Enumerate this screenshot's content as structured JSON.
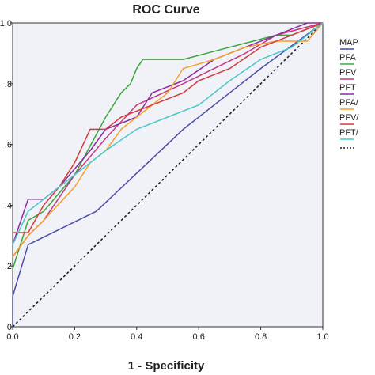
{
  "chart_data": {
    "type": "line",
    "title": "ROC Curve",
    "xlabel": "1 - Specificity",
    "ylabel": "",
    "xlim": [
      0,
      1
    ],
    "ylim": [
      0,
      1
    ],
    "x_ticks": [
      "0.0",
      "0.2",
      "0.4",
      "0.6",
      "0.8",
      "1.0"
    ],
    "y_ticks": [
      "0",
      ".2",
      ".4",
      ".6",
      ".8",
      "1.0"
    ],
    "grid": false,
    "legend": "right",
    "plot_background": "#f0f2f8",
    "series": [
      {
        "name": "MAP",
        "color": "#4a4ea8",
        "points": [
          [
            0,
            0
          ],
          [
            0,
            0.1
          ],
          [
            0.05,
            0.27
          ],
          [
            0.27,
            0.38
          ],
          [
            0.55,
            0.65
          ],
          [
            0.7,
            0.77
          ],
          [
            0.8,
            0.85
          ],
          [
            1.0,
            1.0
          ]
        ]
      },
      {
        "name": "PFA",
        "color": "#3aa63a",
        "points": [
          [
            0,
            0.19
          ],
          [
            0.05,
            0.35
          ],
          [
            0.1,
            0.38
          ],
          [
            0.2,
            0.5
          ],
          [
            0.3,
            0.69
          ],
          [
            0.35,
            0.77
          ],
          [
            0.38,
            0.8
          ],
          [
            0.4,
            0.85
          ],
          [
            0.42,
            0.88
          ],
          [
            0.55,
            0.88
          ],
          [
            0.7,
            0.92
          ],
          [
            0.85,
            0.96
          ],
          [
            0.9,
            0.96
          ],
          [
            1.0,
            1.0
          ]
        ]
      },
      {
        "name": "PFV",
        "color": "#c8377e",
        "points": [
          [
            0,
            0.23
          ],
          [
            0.05,
            0.3
          ],
          [
            0.1,
            0.35
          ],
          [
            0.2,
            0.5
          ],
          [
            0.3,
            0.62
          ],
          [
            0.4,
            0.73
          ],
          [
            0.55,
            0.8
          ],
          [
            0.65,
            0.85
          ],
          [
            0.75,
            0.9
          ],
          [
            0.85,
            0.96
          ],
          [
            1.0,
            1.0
          ]
        ]
      },
      {
        "name": "PFT",
        "color": "#8a2aa6",
        "points": [
          [
            0,
            0.27
          ],
          [
            0.05,
            0.42
          ],
          [
            0.1,
            0.42
          ],
          [
            0.15,
            0.46
          ],
          [
            0.25,
            0.58
          ],
          [
            0.3,
            0.65
          ],
          [
            0.4,
            0.69
          ],
          [
            0.45,
            0.77
          ],
          [
            0.55,
            0.81
          ],
          [
            0.65,
            0.88
          ],
          [
            0.75,
            0.92
          ],
          [
            0.85,
            0.96
          ],
          [
            0.95,
            1.0
          ],
          [
            1.0,
            1.0
          ]
        ]
      },
      {
        "name": "PFA/",
        "color": "#f2a02d",
        "points": [
          [
            0,
            0.23
          ],
          [
            0.05,
            0.3
          ],
          [
            0.1,
            0.35
          ],
          [
            0.2,
            0.46
          ],
          [
            0.25,
            0.54
          ],
          [
            0.3,
            0.58
          ],
          [
            0.35,
            0.65
          ],
          [
            0.4,
            0.69
          ],
          [
            0.5,
            0.77
          ],
          [
            0.55,
            0.85
          ],
          [
            0.65,
            0.88
          ],
          [
            0.75,
            0.92
          ],
          [
            0.85,
            0.94
          ],
          [
            0.95,
            0.94
          ],
          [
            1.0,
            1.0
          ]
        ]
      },
      {
        "name": "PFV/",
        "color": "#d63a3a",
        "points": [
          [
            0,
            0.31
          ],
          [
            0.05,
            0.31
          ],
          [
            0.1,
            0.4
          ],
          [
            0.15,
            0.46
          ],
          [
            0.2,
            0.54
          ],
          [
            0.25,
            0.65
          ],
          [
            0.3,
            0.65
          ],
          [
            0.35,
            0.69
          ],
          [
            0.45,
            0.73
          ],
          [
            0.55,
            0.77
          ],
          [
            0.6,
            0.81
          ],
          [
            0.7,
            0.85
          ],
          [
            0.8,
            0.92
          ],
          [
            0.9,
            0.96
          ],
          [
            1.0,
            1.0
          ]
        ]
      },
      {
        "name": "PFT/",
        "color": "#4cc7c7",
        "points": [
          [
            0,
            0.27
          ],
          [
            0.05,
            0.38
          ],
          [
            0.1,
            0.42
          ],
          [
            0.2,
            0.5
          ],
          [
            0.3,
            0.58
          ],
          [
            0.4,
            0.65
          ],
          [
            0.5,
            0.69
          ],
          [
            0.6,
            0.73
          ],
          [
            0.7,
            0.81
          ],
          [
            0.8,
            0.88
          ],
          [
            0.9,
            0.92
          ],
          [
            1.0,
            1.0
          ]
        ]
      }
    ],
    "reference_line": {
      "legend_label": "",
      "color": "#222222",
      "points": [
        [
          0,
          0
        ],
        [
          1,
          1
        ]
      ]
    }
  }
}
